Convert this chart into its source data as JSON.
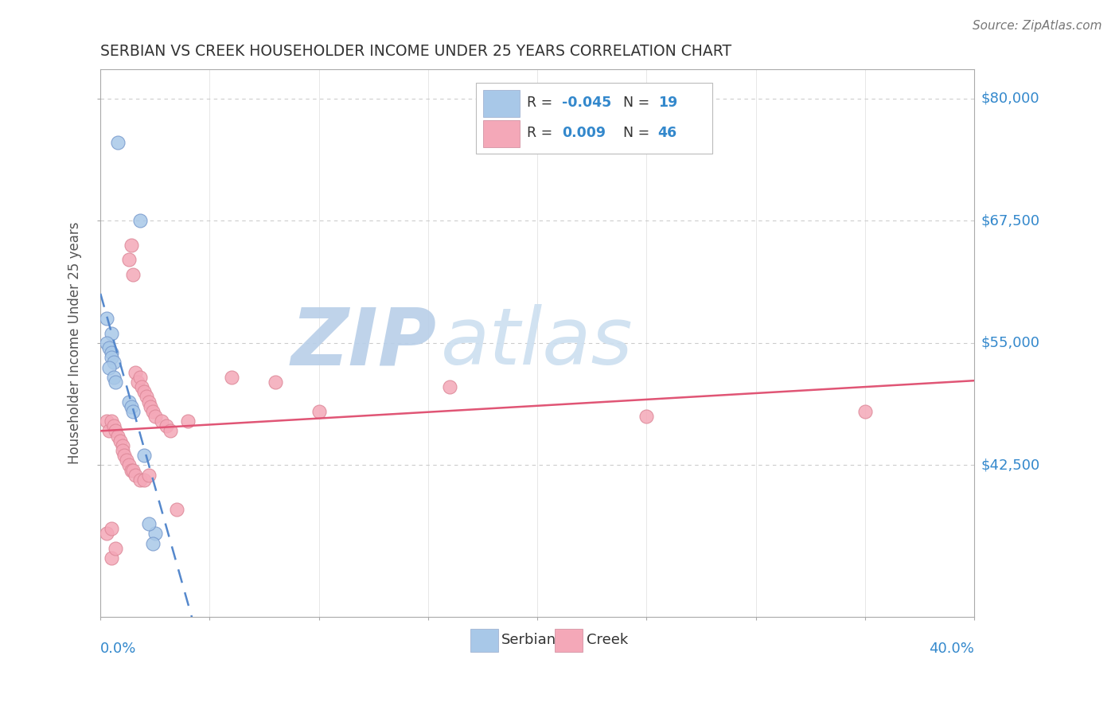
{
  "title": "SERBIAN VS CREEK HOUSEHOLDER INCOME UNDER 25 YEARS CORRELATION CHART",
  "source": "Source: ZipAtlas.com",
  "ylabel": "Householder Income Under 25 years",
  "legend_serbian": "Serbians",
  "legend_creek": "Creek",
  "xmin": 0.0,
  "xmax": 0.4,
  "ymin": 27000,
  "ymax": 83000,
  "color_serbian": "#a8c8e8",
  "color_creek": "#f4a8b8",
  "color_serbian_line": "#5588cc",
  "color_creek_line": "#e05575",
  "watermark_zip": "#c5d8ee",
  "watermark_atlas": "#d8e8f5",
  "title_color": "#333333",
  "axis_label_color": "#4499dd",
  "ytick_positions": [
    42500,
    55000,
    67500,
    80000
  ],
  "ytick_labels": [
    "$42,500",
    "$55,000",
    "$67,500",
    "$80,000"
  ],
  "serbian_x": [
    0.008,
    0.018,
    0.003,
    0.005,
    0.003,
    0.004,
    0.005,
    0.005,
    0.006,
    0.004,
    0.006,
    0.007,
    0.013,
    0.014,
    0.015,
    0.02,
    0.025,
    0.024,
    0.022
  ],
  "serbian_y": [
    75500,
    67500,
    57500,
    56000,
    55000,
    54500,
    54000,
    53500,
    53000,
    52500,
    51500,
    51000,
    49000,
    48500,
    48000,
    43500,
    35500,
    34500,
    36500
  ],
  "creek_x": [
    0.003,
    0.003,
    0.004,
    0.005,
    0.005,
    0.005,
    0.006,
    0.007,
    0.007,
    0.008,
    0.009,
    0.01,
    0.01,
    0.011,
    0.012,
    0.013,
    0.013,
    0.014,
    0.014,
    0.015,
    0.015,
    0.016,
    0.016,
    0.017,
    0.018,
    0.018,
    0.019,
    0.02,
    0.02,
    0.021,
    0.022,
    0.022,
    0.023,
    0.024,
    0.025,
    0.028,
    0.03,
    0.032,
    0.035,
    0.04,
    0.06,
    0.08,
    0.1,
    0.16,
    0.25,
    0.35
  ],
  "creek_y": [
    47000,
    35500,
    46000,
    47000,
    36000,
    33000,
    46500,
    46000,
    34000,
    45500,
    45000,
    44500,
    44000,
    43500,
    43000,
    63500,
    42500,
    65000,
    42000,
    62000,
    42000,
    52000,
    41500,
    51000,
    51500,
    41000,
    50500,
    50000,
    41000,
    49500,
    49000,
    41500,
    48500,
    48000,
    47500,
    47000,
    46500,
    46000,
    38000,
    47000,
    51500,
    51000,
    48000,
    50500,
    47500,
    48000
  ]
}
